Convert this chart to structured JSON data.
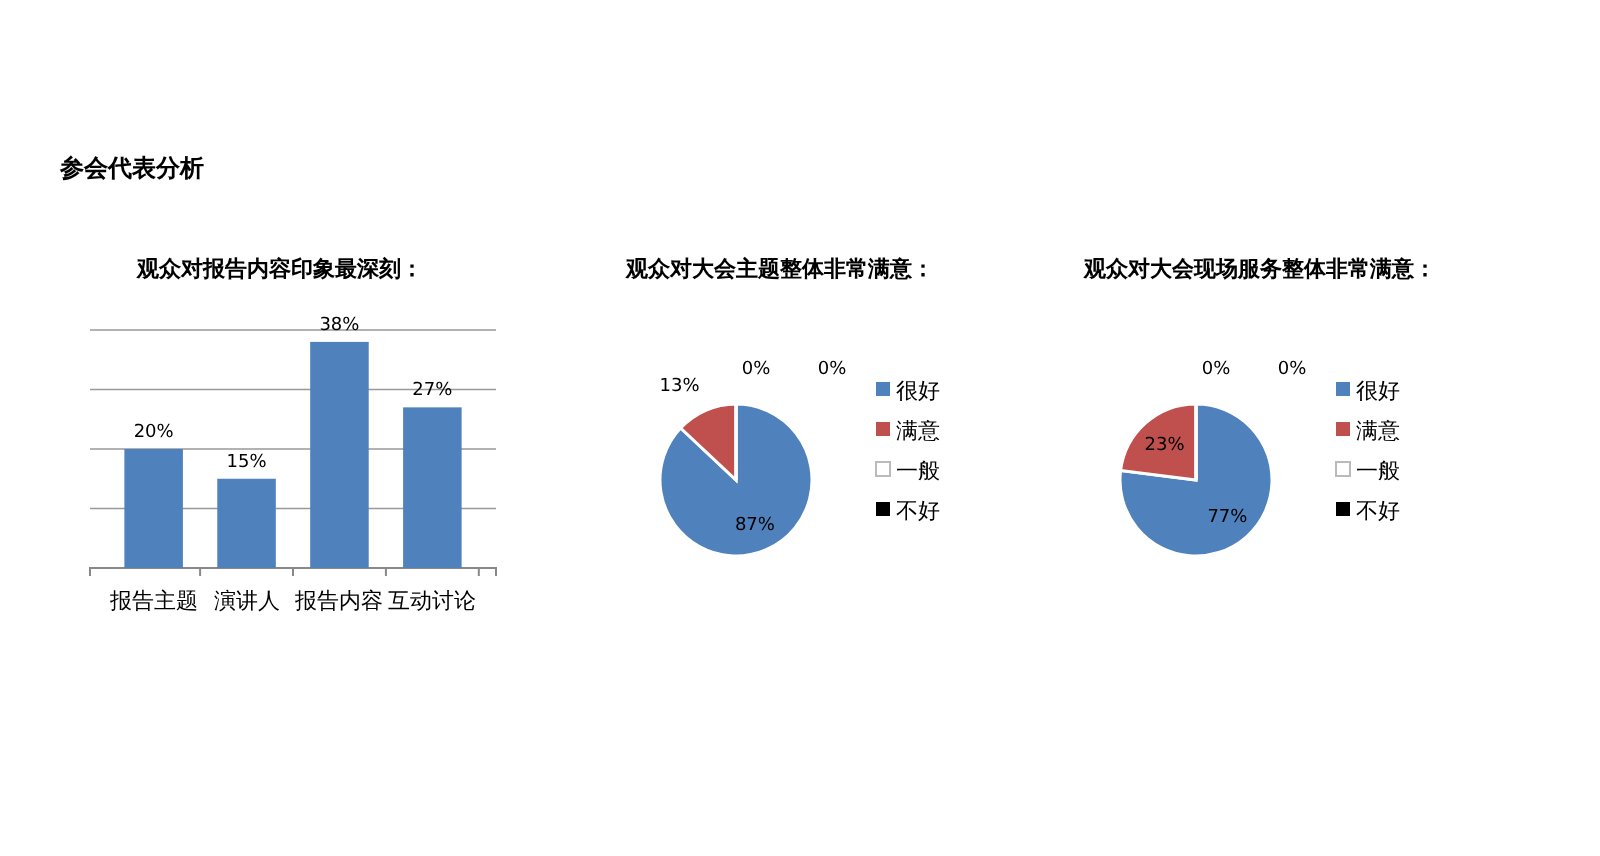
{
  "chart_data": [
    {
      "type": "other",
      "title": "参会代表分析"
    },
    {
      "type": "bar",
      "title": "观众对报告内容印象最深刻：",
      "categories": [
        "报告主题",
        "演讲人",
        "报告内容",
        "互动讨论"
      ],
      "values": [
        20,
        15,
        38,
        27
      ],
      "value_labels": [
        "20%",
        "15%",
        "38%",
        "27%"
      ],
      "color": "#4f81bd",
      "ylim": [
        0,
        40
      ],
      "yticks": [
        {
          "value": 0,
          "label": null
        },
        {
          "value": 10,
          "label": null
        },
        {
          "value": 20,
          "label": null
        },
        {
          "value": 30,
          "label": null
        },
        {
          "value": 40,
          "label": null
        }
      ],
      "grid": "y",
      "tick_labels": "x"
    },
    {
      "type": "pie",
      "title": "观众对大会主题整体非常满意：",
      "categories": [
        "很好",
        "满意",
        "一般",
        "不好"
      ],
      "values": [
        87,
        13,
        0,
        0
      ],
      "value_labels": [
        "87%",
        "13%",
        "0%",
        "0%"
      ],
      "colors": [
        "#4f81bd",
        "#c0504d",
        "#ffffff",
        "#000000"
      ],
      "legend": "right"
    },
    {
      "type": "pie",
      "title": "观众对大会现场服务整体非常满意：",
      "categories": [
        "很好",
        "满意",
        "一般",
        "不好"
      ],
      "values": [
        77,
        23,
        0,
        0
      ],
      "value_labels": [
        "77%",
        "23%",
        "0%",
        "0%"
      ],
      "colors": [
        "#4f81bd",
        "#c0504d",
        "#ffffff",
        "#000000"
      ],
      "legend": "right"
    }
  ]
}
